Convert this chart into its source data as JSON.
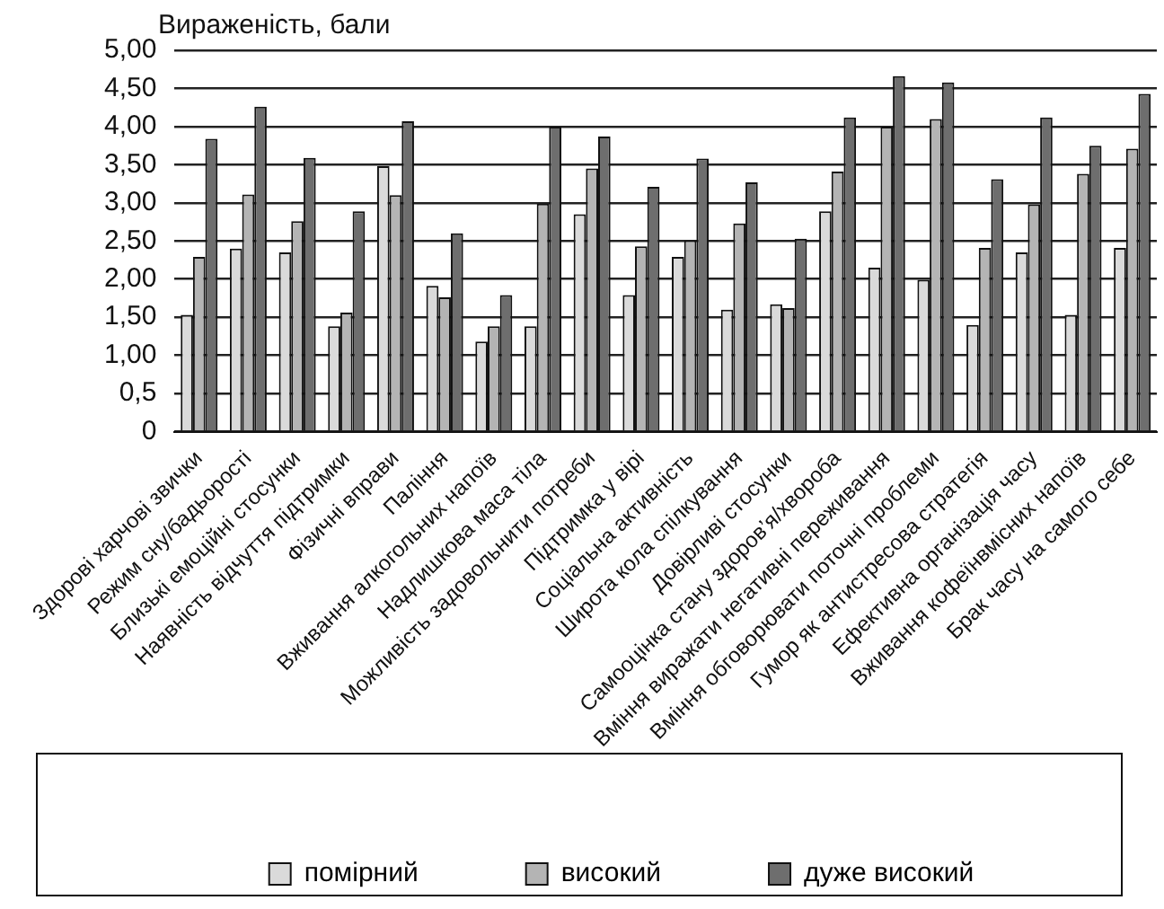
{
  "chart_data": {
    "type": "bar",
    "ylabel": "Вираженість, бали",
    "categories": [
      "Здорові харчові звички",
      "Режим сну/бадьорості",
      "Близькі емоційні стосунки",
      "Наявність відчуття підтримки",
      "Фізичні вправи",
      "Паління",
      "Вживання алкогольних напоїв",
      "Надлишкова маса тіла",
      "Можливість задовольнити потреби",
      "Підтримка у вірі",
      "Соціальна активність",
      "Широта кола спілкування",
      "Довірливі стосунки",
      "Самооцінка стану здоров’я/хвороба",
      "Вміння виражати негативні переживання",
      "Вміння обговорювати поточні проблеми",
      "Гумор як антистресова стратегія",
      "Ефективна організація часу",
      "Вживання кофеїнвмісних напоїв",
      "Брак часу на самого себе"
    ],
    "series": [
      {
        "name": "помірний",
        "color": "#dadada",
        "values": [
          1.53,
          2.4,
          2.35,
          1.38,
          3.48,
          1.91,
          1.18,
          1.38,
          2.85,
          1.79,
          2.29,
          1.6,
          1.67,
          2.89,
          2.15,
          1.99,
          1.4,
          2.35,
          1.53,
          2.41
        ]
      },
      {
        "name": "високий",
        "color": "#b4b4b4",
        "values": [
          2.29,
          3.11,
          2.76,
          1.56,
          3.1,
          1.76,
          1.38,
          2.99,
          3.45,
          2.43,
          2.51,
          2.73,
          1.62,
          3.41,
          4.0,
          4.1,
          2.41,
          2.98,
          3.38,
          3.71
        ]
      },
      {
        "name": "дуже високий",
        "color": "#6e6e6e",
        "values": [
          3.84,
          4.26,
          3.59,
          2.89,
          4.07,
          2.6,
          1.79,
          4.0,
          3.87,
          3.21,
          3.58,
          3.27,
          2.53,
          4.12,
          4.66,
          4.58,
          3.31,
          4.12,
          3.75,
          4.43
        ]
      }
    ],
    "ylim": [
      0,
      5
    ],
    "yticks": [
      0,
      {
        "value": 0.5,
        "label": "0,5"
      },
      {
        "value": 1,
        "label": "1,00"
      },
      {
        "value": 1.5,
        "label": "1,50"
      },
      {
        "value": 2,
        "label": "2,00"
      },
      {
        "value": 2.5,
        "label": "2,50"
      },
      {
        "value": 3,
        "label": "3,00"
      },
      {
        "value": 3.5,
        "label": "3,50"
      },
      {
        "value": 4,
        "label": "4,00"
      },
      {
        "value": 4.5,
        "label": "4,50"
      },
      {
        "value": 5,
        "label": "5,00"
      }
    ],
    "grid": "y",
    "legend": "bottom"
  }
}
